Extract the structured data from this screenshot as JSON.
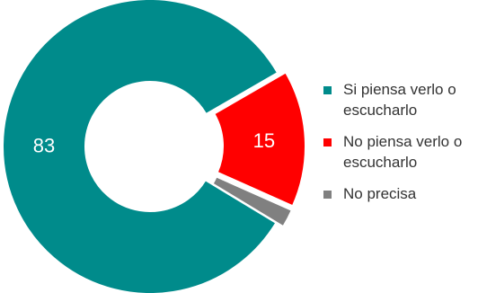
{
  "chart_data": {
    "type": "pie",
    "variant": "donut",
    "series": [
      {
        "name": "Si piensa verlo o escucharlo",
        "value": 83,
        "color": "#008B8B",
        "label": "83"
      },
      {
        "name": "No piensa verlo o escucharlo",
        "value": 15,
        "color": "#FF0000",
        "label": "15"
      },
      {
        "name": "No precisa",
        "value": 2,
        "color": "#808080",
        "label": ""
      }
    ],
    "legend_position": "right"
  }
}
